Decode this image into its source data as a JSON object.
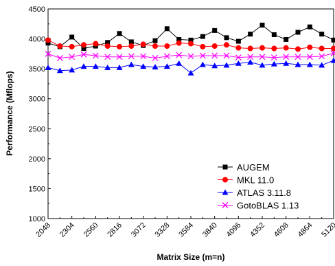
{
  "chart_data": {
    "type": "line",
    "title": "",
    "xlabel": "Matrix Size (m=n)",
    "ylabel": "Performance (Mflops)",
    "xlim": [
      2048,
      5120
    ],
    "ylim": [
      1000,
      4500
    ],
    "x_ticks": [
      "2048",
      "2304",
      "2560",
      "2816",
      "3072",
      "3328",
      "3584",
      "3840",
      "4096",
      "4352",
      "4608",
      "4864",
      "5120"
    ],
    "x_tick_values": [
      2048,
      2304,
      2560,
      2816,
      3072,
      3328,
      3584,
      3840,
      4096,
      4352,
      4608,
      4864,
      5120
    ],
    "y_ticks": [
      "1000",
      "1500",
      "2000",
      "2500",
      "3000",
      "3500",
      "4000",
      "4500"
    ],
    "y_tick_values": [
      1000,
      1500,
      2000,
      2500,
      3000,
      3500,
      4000,
      4500
    ],
    "grid": false,
    "legend": "bottom-right",
    "x": [
      2048,
      2176,
      2304,
      2432,
      2560,
      2688,
      2816,
      2944,
      3072,
      3200,
      3328,
      3456,
      3584,
      3712,
      3840,
      3968,
      4096,
      4224,
      4352,
      4480,
      4608,
      4736,
      4864,
      4992,
      5120
    ],
    "series": [
      {
        "name": "AUGEM",
        "color": "#000000",
        "marker": "square",
        "values": [
          3930,
          3870,
          4030,
          3840,
          3880,
          3940,
          4090,
          3950,
          3890,
          3970,
          4170,
          3990,
          3980,
          4040,
          4140,
          4020,
          3960,
          4080,
          4230,
          4070,
          3990,
          4110,
          4200,
          4080,
          3980
        ]
      },
      {
        "name": "MKL 11.0",
        "color": "#ff0000",
        "marker": "circle",
        "values": [
          3980,
          3880,
          3870,
          3900,
          3920,
          3880,
          3870,
          3880,
          3910,
          3880,
          3880,
          3930,
          3920,
          3870,
          3880,
          3900,
          3850,
          3840,
          3850,
          3840,
          3850,
          3830,
          3860,
          3840,
          3840
        ]
      },
      {
        "name": "ATLAS 3.11.8",
        "color": "#0000ff",
        "marker": "triangle",
        "values": [
          3520,
          3470,
          3480,
          3540,
          3540,
          3520,
          3520,
          3570,
          3540,
          3530,
          3540,
          3590,
          3430,
          3570,
          3550,
          3560,
          3590,
          3610,
          3560,
          3580,
          3590,
          3570,
          3570,
          3560,
          3640
        ]
      },
      {
        "name": "GotoBLAS  1.13",
        "color": "#ff00ff",
        "marker": "x",
        "values": [
          3750,
          3680,
          3700,
          3740,
          3720,
          3700,
          3700,
          3710,
          3710,
          3680,
          3710,
          3730,
          3710,
          3720,
          3720,
          3720,
          3690,
          3700,
          3700,
          3690,
          3700,
          3700,
          3700,
          3710,
          3760
        ]
      }
    ]
  }
}
